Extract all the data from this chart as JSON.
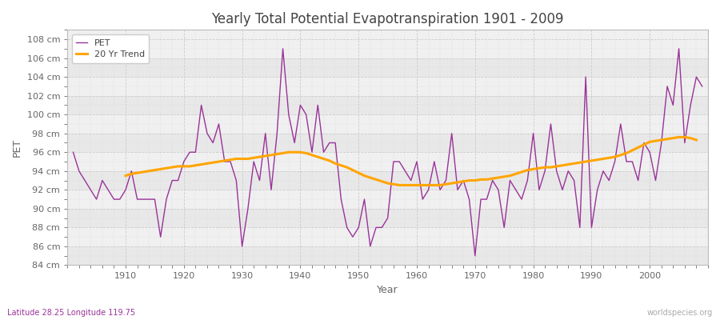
{
  "title": "Yearly Total Potential Evapotranspiration 1901 - 2009",
  "xlabel": "Year",
  "ylabel": "PET",
  "bottom_left_label": "Latitude 28.25 Longitude 119.75",
  "bottom_right_label": "worldspecies.org",
  "pet_color": "#993399",
  "trend_color": "#FFA500",
  "background_color": "#ffffff",
  "plot_bg_color": "#f0f0f0",
  "ylim": [
    84,
    109
  ],
  "yticks": [
    84,
    86,
    88,
    90,
    92,
    94,
    96,
    98,
    100,
    102,
    104,
    106,
    108
  ],
  "xticks": [
    1910,
    1920,
    1930,
    1940,
    1950,
    1960,
    1970,
    1980,
    1990,
    2000
  ],
  "xlim": [
    1900,
    2010
  ],
  "years": [
    1901,
    1902,
    1903,
    1904,
    1905,
    1906,
    1907,
    1908,
    1909,
    1910,
    1911,
    1912,
    1913,
    1914,
    1915,
    1916,
    1917,
    1918,
    1919,
    1920,
    1921,
    1922,
    1923,
    1924,
    1925,
    1926,
    1927,
    1928,
    1929,
    1930,
    1931,
    1932,
    1933,
    1934,
    1935,
    1936,
    1937,
    1938,
    1939,
    1940,
    1941,
    1942,
    1943,
    1944,
    1945,
    1946,
    1947,
    1948,
    1949,
    1950,
    1951,
    1952,
    1953,
    1954,
    1955,
    1956,
    1957,
    1958,
    1959,
    1960,
    1961,
    1962,
    1963,
    1964,
    1965,
    1966,
    1967,
    1968,
    1969,
    1970,
    1971,
    1972,
    1973,
    1974,
    1975,
    1976,
    1977,
    1978,
    1979,
    1980,
    1981,
    1982,
    1983,
    1984,
    1985,
    1986,
    1987,
    1988,
    1989,
    1990,
    1991,
    1992,
    1993,
    1994,
    1995,
    1996,
    1997,
    1998,
    1999,
    2000,
    2001,
    2002,
    2003,
    2004,
    2005,
    2006,
    2007,
    2008,
    2009
  ],
  "pet_values": [
    96,
    94,
    93,
    92,
    91,
    93,
    92,
    91,
    91,
    92,
    94,
    91,
    91,
    91,
    91,
    87,
    91,
    93,
    93,
    95,
    96,
    96,
    101,
    98,
    97,
    99,
    95,
    95,
    93,
    86,
    90,
    95,
    93,
    98,
    92,
    98,
    107,
    100,
    97,
    101,
    100,
    96,
    101,
    96,
    97,
    97,
    91,
    88,
    87,
    88,
    91,
    86,
    88,
    88,
    89,
    95,
    95,
    94,
    93,
    95,
    91,
    92,
    95,
    92,
    93,
    98,
    92,
    93,
    91,
    85,
    91,
    91,
    93,
    92,
    88,
    93,
    92,
    91,
    93,
    98,
    92,
    94,
    99,
    94,
    92,
    94,
    93,
    88,
    104,
    88,
    92,
    94,
    93,
    95,
    99,
    95,
    95,
    93,
    97,
    96,
    93,
    97,
    103,
    101,
    107,
    97,
    101,
    104,
    103
  ],
  "trend_values": [
    null,
    null,
    null,
    null,
    null,
    null,
    null,
    null,
    null,
    93.5,
    93.7,
    93.8,
    93.9,
    94.0,
    94.1,
    94.2,
    94.3,
    94.4,
    94.5,
    94.5,
    94.5,
    94.6,
    94.7,
    94.8,
    94.9,
    95.0,
    95.1,
    95.2,
    95.3,
    95.3,
    95.3,
    95.4,
    95.5,
    95.6,
    95.7,
    95.8,
    95.9,
    96.0,
    96.0,
    96.0,
    95.9,
    95.7,
    95.5,
    95.3,
    95.1,
    94.8,
    94.6,
    94.4,
    94.1,
    93.8,
    93.5,
    93.3,
    93.1,
    92.9,
    92.7,
    92.6,
    92.5,
    92.5,
    92.5,
    92.5,
    92.5,
    92.5,
    92.5,
    92.5,
    92.6,
    92.7,
    92.8,
    92.9,
    93.0,
    93.0,
    93.1,
    93.1,
    93.2,
    93.3,
    93.4,
    93.5,
    93.7,
    93.9,
    94.1,
    94.2,
    94.3,
    94.4,
    94.4,
    94.5,
    94.6,
    94.7,
    94.8,
    94.9,
    95.0,
    95.1,
    95.2,
    95.3,
    95.4,
    95.5,
    95.7,
    95.9,
    96.2,
    96.5,
    96.8,
    97.1,
    97.2,
    97.3,
    97.4,
    97.5,
    97.6,
    97.6,
    97.5,
    97.3
  ]
}
